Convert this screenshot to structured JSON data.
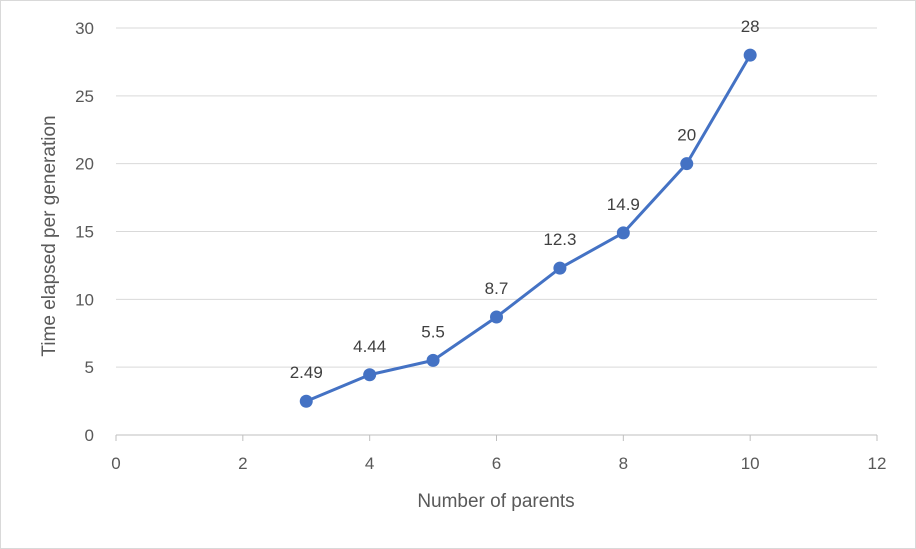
{
  "chart_data": {
    "type": "scatter",
    "mode": "lines+markers",
    "title": "",
    "xlabel": "Number of parents",
    "ylabel": "Time elapsed per generation",
    "xlim": [
      0,
      12
    ],
    "ylim": [
      0,
      30
    ],
    "x_ticks": [
      0,
      2,
      4,
      6,
      8,
      10,
      12
    ],
    "y_ticks": [
      0,
      5,
      10,
      15,
      20,
      25,
      30
    ],
    "grid": "horizontal",
    "legend": "none",
    "series": [
      {
        "x": [
          3,
          4,
          5,
          6,
          7,
          8,
          9,
          10
        ],
        "y": [
          2.49,
          4.44,
          5.5,
          8.7,
          12.3,
          14.9,
          20,
          28
        ],
        "labels": [
          "2.49",
          "4.44",
          "5.5",
          "8.7",
          "12.3",
          "14.9",
          "20",
          "28"
        ],
        "color": "#4472c4"
      }
    ]
  }
}
